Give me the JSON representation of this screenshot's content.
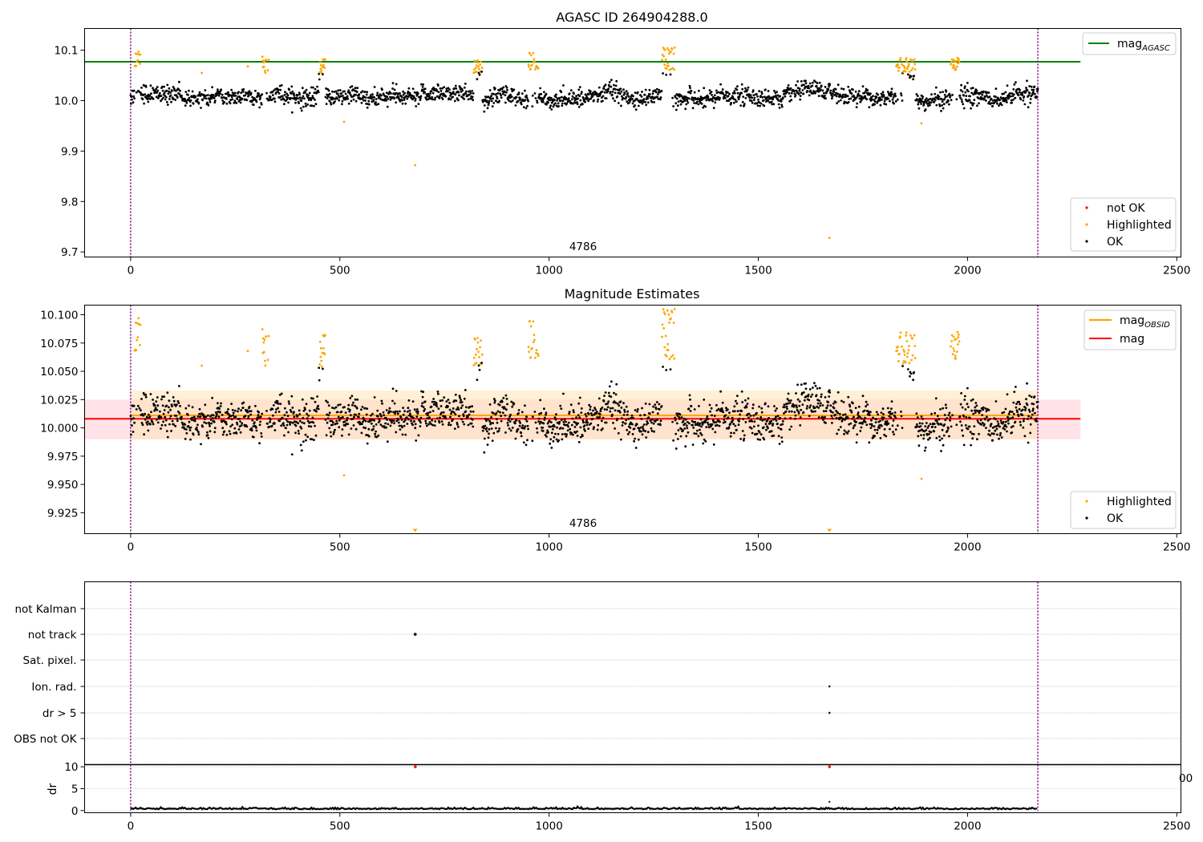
{
  "colors": {
    "ok": "#000000",
    "highlighted": "#ffa500",
    "not_ok": "#ff0000",
    "mag_agasc": "#008000",
    "mag": "#ff0000",
    "mag_obsid": "#ffa500",
    "obs_boundary": "#800080",
    "band_red": "#ffc0cb",
    "band_orange": "#ffe4b5"
  },
  "chart_data": [
    {
      "type": "scatter",
      "title": "AGASC ID 264904288.0",
      "xlabel": "",
      "ylabel": "",
      "xlim": [
        -110,
        2510
      ],
      "ylim": [
        9.69,
        10.143
      ],
      "xticks": [
        0,
        500,
        1000,
        1500,
        2000,
        2500
      ],
      "xtick_labels": [
        "0",
        "500",
        "1000",
        "1500",
        "2000",
        "2500"
      ],
      "yticks": [
        9.7,
        9.8,
        9.9,
        10.0,
        10.1
      ],
      "ytick_labels": [
        "9.7",
        "9.8",
        "9.9",
        "10.0",
        "10.1"
      ],
      "obsid_annotation": {
        "text": "4786",
        "x": 1083,
        "y": 9.702
      },
      "obs_boundaries": [
        0,
        2168
      ],
      "n_points": 2169,
      "ok_mean": 10.007,
      "ok_scatter": 0.016,
      "lines": [
        {
          "name": "mag_AGASC",
          "value": 10.077,
          "xrange": [
            -110,
            2270
          ]
        }
      ],
      "legend_top": {
        "entries": [
          {
            "label": "mag",
            "sub": "AGASC"
          }
        ],
        "placement": "upper right"
      },
      "legend_bottom": {
        "entries": [
          "not OK",
          "Highlighted",
          "OK"
        ],
        "placement": "lower right"
      },
      "highlight_groups": [
        {
          "x": [
            10,
            25
          ],
          "y": [
            10.068,
            10.1
          ]
        },
        {
          "x": [
            315,
            330
          ],
          "y": [
            10.055,
            10.09
          ]
        },
        {
          "x": [
            450,
            465
          ],
          "y": [
            10.052,
            10.09
          ]
        },
        {
          "x": [
            820,
            840
          ],
          "y": [
            10.055,
            10.08
          ]
        },
        {
          "x": [
            950,
            975
          ],
          "y": [
            10.06,
            10.095
          ]
        },
        {
          "x": [
            1270,
            1300
          ],
          "y": [
            10.06,
            10.105
          ]
        },
        {
          "x": [
            1830,
            1875
          ],
          "y": [
            10.055,
            10.085
          ]
        },
        {
          "x": [
            1960,
            1980
          ],
          "y": [
            10.06,
            10.085
          ]
        }
      ],
      "highlight_singles": [
        {
          "x": 680,
          "y": 9.872
        },
        {
          "x": 1670,
          "y": 9.728
        },
        {
          "x": 510,
          "y": 9.958
        },
        {
          "x": 1890,
          "y": 9.955
        },
        {
          "x": 170,
          "y": 10.055
        },
        {
          "x": 280,
          "y": 10.068
        }
      ],
      "dense_segments": [
        {
          "x": [
            825,
            840
          ],
          "y": 10.053
        },
        {
          "x": [
            1845,
            1875
          ],
          "y": 10.049
        },
        {
          "x": [
            1270,
            1290
          ],
          "y": 10.05
        },
        {
          "x": [
            450,
            465
          ],
          "y": 10.05
        }
      ]
    },
    {
      "type": "scatter",
      "title": "Magnitude Estimates",
      "xlabel": "",
      "ylabel": "",
      "xlim": [
        -110,
        2510
      ],
      "ylim": [
        9.9065,
        10.1085
      ],
      "xticks": [
        0,
        500,
        1000,
        1500,
        2000,
        2500
      ],
      "xtick_labels": [
        "0",
        "500",
        "1000",
        "1500",
        "2000",
        "2500"
      ],
      "yticks": [
        9.925,
        9.95,
        9.975,
        10.0,
        10.025,
        10.05,
        10.075,
        10.1
      ],
      "ytick_labels": [
        "9.925",
        "9.950",
        "9.975",
        "10.000",
        "10.025",
        "10.050",
        "10.075",
        "10.100"
      ],
      "obsid_annotation": {
        "text": "4786",
        "x": 1083,
        "y": 9.912
      },
      "obs_boundaries": [
        0,
        2168
      ],
      "lines": [
        {
          "name": "mag_OBSID",
          "value": 10.011,
          "xrange": [
            0,
            2168
          ]
        },
        {
          "name": "mag",
          "value": 10.008,
          "xrange": [
            -110,
            2270
          ]
        }
      ],
      "bands": [
        {
          "name": "mag",
          "range": [
            9.99,
            10.025
          ],
          "xrange": [
            -110,
            2270
          ]
        },
        {
          "name": "mag_OBSID",
          "range": [
            9.99,
            10.033
          ],
          "xrange": [
            0,
            2168
          ]
        }
      ],
      "offscale_markers": [
        {
          "x": 680
        },
        {
          "x": 1670
        }
      ],
      "legend": {
        "entries": [
          {
            "label": "mag",
            "sub": "OBSID"
          },
          {
            "label": "mag"
          }
        ],
        "placement": "upper right"
      },
      "legend_bottom": {
        "entries": [
          "Highlighted",
          "OK"
        ],
        "placement": "lower right"
      }
    },
    {
      "type": "scatter",
      "title": "",
      "xlim": [
        -110,
        2510
      ],
      "ylabel": "",
      "categories": [
        "not Kalman",
        "not track",
        "Sat. pixel.",
        "Ion. rad.",
        "dr > 5",
        "OBS not OK"
      ],
      "flags": [
        {
          "category": "not track",
          "x": [
            680
          ]
        },
        {
          "category": "Ion. rad.",
          "x": [
            1670
          ]
        },
        {
          "category": "dr > 5",
          "x": [
            1670
          ]
        }
      ],
      "obs_boundaries": [
        0,
        2168
      ]
    },
    {
      "type": "line",
      "title": "",
      "xlabel": "",
      "ylabel": "dr",
      "xlim": [
        -110,
        2510
      ],
      "ylim": [
        -0.5,
        10.5
      ],
      "xticks": [
        0,
        500,
        1000,
        1500,
        2000,
        2500
      ],
      "xtick_labels": [
        "0",
        "500",
        "1000",
        "1500",
        "2000",
        "2500"
      ],
      "yticks": [
        0,
        5,
        10
      ],
      "ytick_labels": [
        "0",
        "5",
        "10"
      ],
      "dr_baseline": 0.3,
      "dr_outliers": [
        {
          "x": 680,
          "y": 10
        },
        {
          "x": 1670,
          "y": 10
        },
        {
          "x": 1670,
          "y": 2
        }
      ],
      "obs_boundaries": [
        0,
        2168
      ],
      "clipped_label": "00"
    }
  ]
}
